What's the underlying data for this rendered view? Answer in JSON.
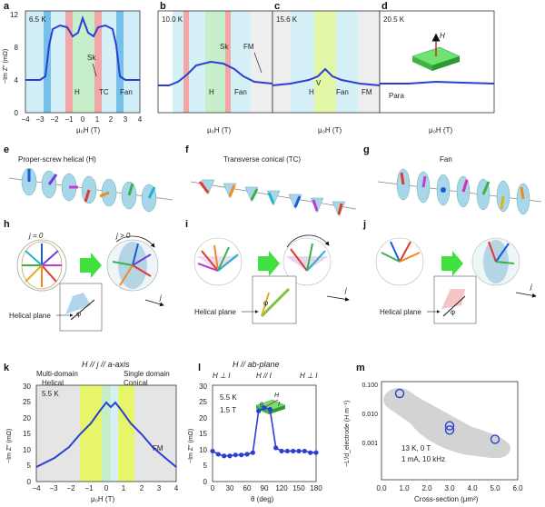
{
  "panels": {
    "a": {
      "label": "a",
      "temp": "6.5 K",
      "ann_sk": "Sk",
      "ann_h": "H",
      "ann_tc": "TC",
      "ann_fan": "Fan"
    },
    "b": {
      "label": "b",
      "temp": "10.0 K",
      "ann_sk": "Sk",
      "ann_fm": "FM",
      "ann_h": "H",
      "ann_fan": "Fan"
    },
    "c": {
      "label": "c",
      "temp": "15.6 K",
      "ann_v": "V",
      "ann_h": "H",
      "ann_fan": "Fan",
      "ann_fm": "FM"
    },
    "d": {
      "label": "d",
      "temp": "20.5 K",
      "ann_para": "Para",
      "ann_h": "H"
    },
    "e": {
      "label": "e",
      "title": "Proper-screw helical (H)"
    },
    "f": {
      "label": "f",
      "title": "Transverse conical (TC)"
    },
    "g": {
      "label": "g",
      "title": "Fan"
    },
    "h": {
      "label": "h",
      "j0": "j = 0",
      "jpos": "j > 0",
      "helical_plane": "Helical plane",
      "j": "j",
      "phi": "φ"
    },
    "i": {
      "label": "i",
      "helical_plane": "Helical plane",
      "j": "j",
      "phi": "φ"
    },
    "j": {
      "label": "j",
      "helical_plane": "Helical plane",
      "j": "j",
      "phi": "φ"
    },
    "k": {
      "label": "k",
      "heading": "H // j // a-axis",
      "multi": "Multi-domain",
      "single": "Single domain",
      "helical": "Helical",
      "conical": "Conical",
      "temp": "5.5 K",
      "fm": "FM"
    },
    "l": {
      "label": "l",
      "heading": "H // ab-plane",
      "hperp1": "H ⊥ I",
      "hpar": "H // I",
      "hperp2": "H ⊥ I",
      "temp": "5.5 K",
      "field": "1.5 T",
      "theta": "θ",
      "hh": "H",
      "ii": "I"
    },
    "m": {
      "label": "m",
      "cond1": "13 K, 0 T",
      "cond2": "1 mA, 10 kHz"
    }
  },
  "top_axis": {
    "xlabel": "μ₀H (T)",
    "xticks": [
      "−4",
      "−3",
      "−2",
      "−1",
      "0",
      "1",
      "2",
      "3",
      "4"
    ],
    "ylabel": "−Im Z″ (mΩ)",
    "yticks": [
      "0",
      "4",
      "8",
      "12"
    ]
  },
  "k_axis": {
    "xlabel": "μ₀H (T)",
    "xticks": [
      "−4",
      "−3",
      "−2",
      "−1",
      "0",
      "1",
      "2",
      "3",
      "4"
    ],
    "ylabel": "−Im Z″ (mΩ)",
    "yticks": [
      "0",
      "5",
      "10",
      "15",
      "20",
      "25",
      "30"
    ]
  },
  "l_axis": {
    "xlabel": "θ (deg)",
    "xticks": [
      "0",
      "30",
      "60",
      "90",
      "120",
      "150",
      "180"
    ],
    "ylabel": "−Im Z″ (mΩ)",
    "yticks": [
      "0",
      "5",
      "10",
      "15",
      "20",
      "25",
      "30"
    ]
  },
  "m_axis": {
    "xlabel": "Cross-section (μm²)",
    "xticks": [
      "0.0",
      "1.0",
      "2.0",
      "3.0",
      "4.0",
      "5.0",
      "6.0"
    ],
    "ylabel": "−L′/d_electrode (H m⁻¹)",
    "yticks": [
      "0.001",
      "0.010",
      "0.100"
    ]
  },
  "chart_data": [
    {
      "type": "line",
      "panel": "l",
      "title": "H // ab-plane",
      "xlabel": "θ (deg)",
      "ylabel": "−Im Z″ (mΩ)",
      "x": [
        0,
        10,
        20,
        30,
        40,
        50,
        60,
        70,
        80,
        90,
        100,
        110,
        120,
        130,
        140,
        150,
        160,
        170,
        180
      ],
      "values": [
        9.5,
        8.5,
        8.0,
        8.0,
        8.3,
        8.3,
        8.5,
        9.0,
        22.0,
        23.0,
        22.5,
        10.5,
        9.5,
        9.5,
        9.5,
        9.5,
        9.5,
        9.0,
        9.0
      ],
      "xlim": [
        0,
        180
      ],
      "ylim": [
        0,
        30
      ]
    },
    {
      "type": "scatter",
      "panel": "m",
      "xlabel": "Cross-section (μm²)",
      "ylabel": "−L′/d_electrode (H m⁻¹)",
      "x": [
        0.8,
        3.0,
        3.0,
        5.0
      ],
      "values": [
        0.045,
        0.0035,
        0.0025,
        0.0012
      ],
      "xlim": [
        0,
        6
      ],
      "ylim": [
        0.0005,
        0.1
      ],
      "yscale": "log"
    }
  ]
}
